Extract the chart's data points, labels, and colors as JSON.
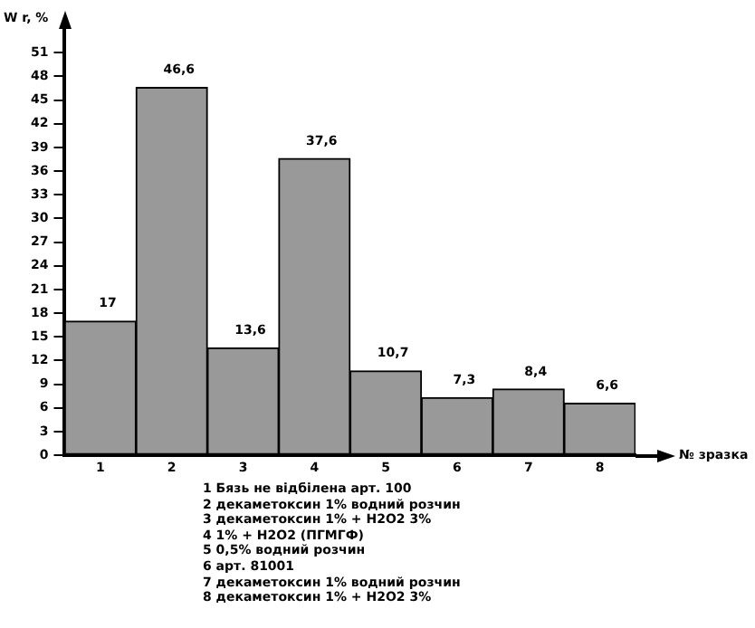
{
  "chart_data": {
    "type": "bar",
    "ylabel": "W r, %",
    "xlabel": "№ зразка",
    "categories": [
      "1",
      "2",
      "3",
      "4",
      "5",
      "6",
      "7",
      "8"
    ],
    "values": [
      17,
      46.6,
      13.6,
      37.6,
      10.7,
      7.3,
      8.4,
      6.6
    ],
    "value_labels": [
      "17",
      "46,6",
      "13,6",
      "37,6",
      "10,7",
      "7,3",
      "8,4",
      "6,6"
    ],
    "color": "#999999",
    "ylim": [
      0,
      54
    ],
    "yticks": [
      0,
      3,
      6,
      9,
      12,
      15,
      18,
      21,
      24,
      27,
      30,
      33,
      36,
      39,
      42,
      45,
      48,
      51
    ],
    "grid": false,
    "legend": false,
    "annotations": [
      "1 Бязь не відбілена арт. 100",
      "2 декаметоксин 1% водний розчин",
      "3 декаметоксин 1% + Н2О2 3%",
      "4 1% + Н2О2 (ПГМГФ)",
      "5 0,5% водний розчин",
      "6 арт. 81001",
      "7 декаметоксин 1% водний розчин",
      "8 декаметоксин 1% + Н2О2 3%"
    ]
  }
}
